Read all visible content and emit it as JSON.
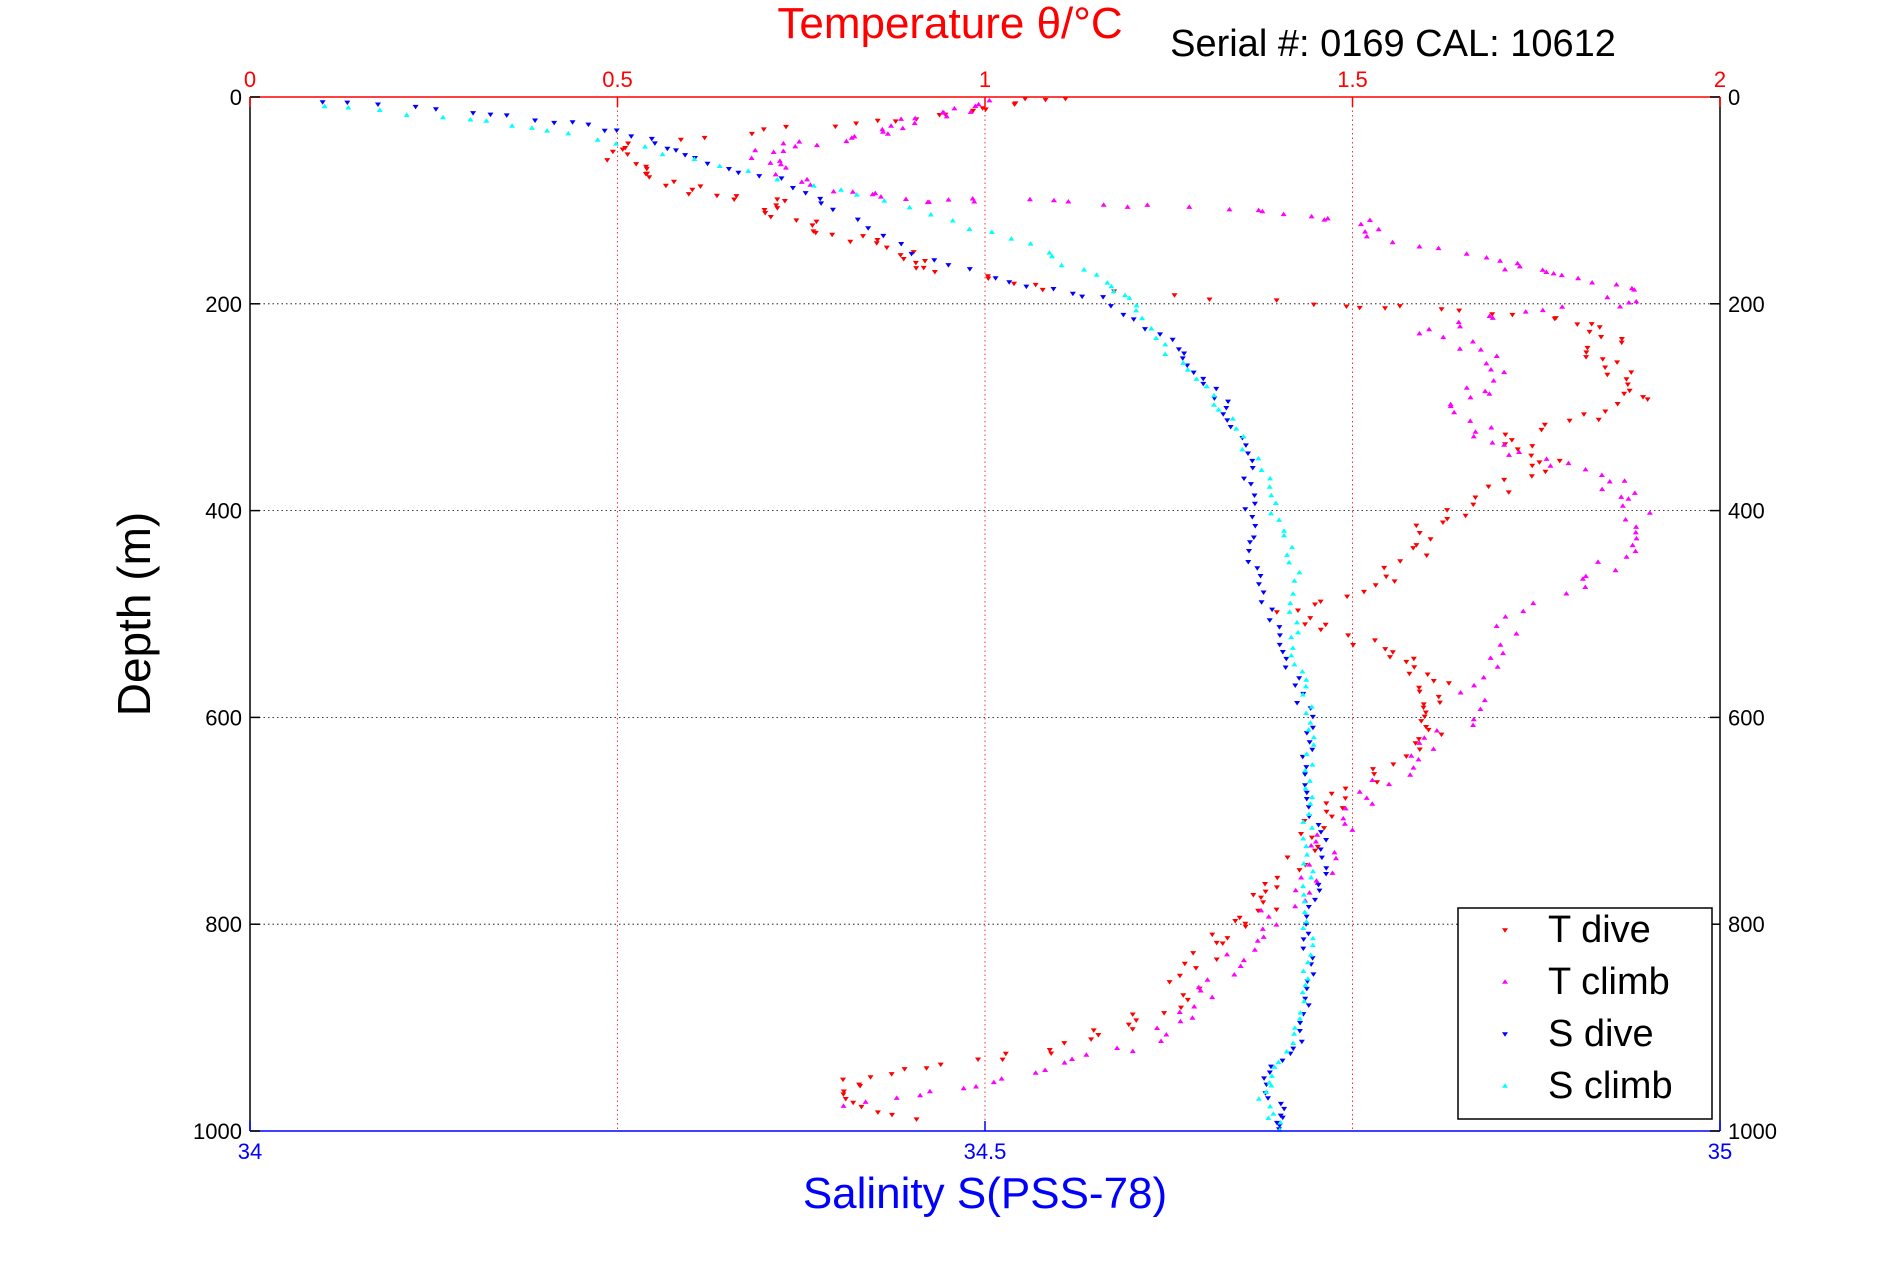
{
  "chart_data": {
    "type": "scatter",
    "title": "Temperature θ/°C",
    "subtitle": "Serial #: 0169 CAL: 10612",
    "ylabel": "Depth (m)",
    "xlabel": "Salinity S(PSS-78)",
    "top_axis": {
      "label": "Temperature θ/°C",
      "range": [
        0,
        2
      ],
      "ticks": [
        "0",
        "0.5",
        "1",
        "1.5",
        "2"
      ],
      "color": "#ff0000"
    },
    "bottom_axis": {
      "label": "Salinity S(PSS-78)",
      "range": [
        34,
        35
      ],
      "ticks": [
        "34",
        "34.5",
        "35"
      ],
      "color": "#0000ff"
    },
    "y_axis": {
      "range": [
        0,
        1000
      ],
      "inverted": true,
      "ticks": [
        "0",
        "200",
        "400",
        "600",
        "800",
        "1000"
      ]
    },
    "grid": true,
    "legend_placement": "bottom-right",
    "series": [
      {
        "name": "T dive",
        "axis": "temperature",
        "color": "#ff0000",
        "marker": "triangle-down",
        "points": [
          [
            1.09,
            0
          ],
          [
            1.02,
            10
          ],
          [
            0.93,
            20
          ],
          [
            0.75,
            30
          ],
          [
            0.52,
            45
          ],
          [
            0.5,
            60
          ],
          [
            0.55,
            75
          ],
          [
            0.6,
            90
          ],
          [
            0.7,
            100
          ],
          [
            0.72,
            110
          ],
          [
            0.78,
            130
          ],
          [
            0.85,
            140
          ],
          [
            0.9,
            155
          ],
          [
            0.95,
            170
          ],
          [
            1.1,
            185
          ],
          [
            1.45,
            200
          ],
          [
            1.6,
            205
          ],
          [
            1.8,
            215
          ],
          [
            1.85,
            230
          ],
          [
            1.83,
            250
          ],
          [
            1.87,
            270
          ],
          [
            1.9,
            290
          ],
          [
            1.82,
            310
          ],
          [
            1.7,
            330
          ],
          [
            1.78,
            350
          ],
          [
            1.72,
            370
          ],
          [
            1.65,
            400
          ],
          [
            1.6,
            420
          ],
          [
            1.58,
            450
          ],
          [
            1.52,
            480
          ],
          [
            1.4,
            500
          ],
          [
            1.5,
            520
          ],
          [
            1.55,
            540
          ],
          [
            1.6,
            560
          ],
          [
            1.62,
            580
          ],
          [
            1.62,
            600
          ],
          [
            1.6,
            620
          ],
          [
            1.55,
            650
          ],
          [
            1.48,
            680
          ],
          [
            1.44,
            700
          ],
          [
            1.43,
            730
          ],
          [
            1.4,
            760
          ],
          [
            1.38,
            780
          ],
          [
            1.35,
            800
          ],
          [
            1.3,
            820
          ],
          [
            1.28,
            850
          ],
          [
            1.25,
            880
          ],
          [
            1.18,
            900
          ],
          [
            1.1,
            920
          ],
          [
            0.95,
            935
          ],
          [
            0.8,
            950
          ],
          [
            0.82,
            970
          ],
          [
            0.9,
            990
          ]
        ]
      },
      {
        "name": "T climb",
        "axis": "temperature",
        "color": "#ff00ff",
        "marker": "triangle-up",
        "points": [
          [
            1.03,
            5
          ],
          [
            0.95,
            15
          ],
          [
            0.9,
            25
          ],
          [
            0.85,
            35
          ],
          [
            0.75,
            45
          ],
          [
            0.7,
            55
          ],
          [
            0.72,
            70
          ],
          [
            0.8,
            90
          ],
          [
            0.9,
            100
          ],
          [
            1.0,
            100
          ],
          [
            1.2,
            105
          ],
          [
            1.4,
            110
          ],
          [
            1.5,
            120
          ],
          [
            1.55,
            140
          ],
          [
            1.7,
            160
          ],
          [
            1.75,
            170
          ],
          [
            1.85,
            180
          ],
          [
            1.88,
            200
          ],
          [
            1.7,
            210
          ],
          [
            1.6,
            230
          ],
          [
            1.7,
            250
          ],
          [
            1.68,
            280
          ],
          [
            1.65,
            300
          ],
          [
            1.68,
            330
          ],
          [
            1.75,
            350
          ],
          [
            1.85,
            370
          ],
          [
            1.88,
            390
          ],
          [
            1.9,
            420
          ],
          [
            1.85,
            450
          ],
          [
            1.78,
            480
          ],
          [
            1.7,
            520
          ],
          [
            1.67,
            560
          ],
          [
            1.65,
            600
          ],
          [
            1.6,
            630
          ],
          [
            1.55,
            660
          ],
          [
            1.5,
            690
          ],
          [
            1.47,
            720
          ],
          [
            1.45,
            750
          ],
          [
            1.42,
            770
          ],
          [
            1.38,
            800
          ],
          [
            1.35,
            830
          ],
          [
            1.3,
            860
          ],
          [
            1.28,
            890
          ],
          [
            1.2,
            920
          ],
          [
            1.1,
            940
          ],
          [
            0.95,
            960
          ],
          [
            0.8,
            975
          ]
        ]
      },
      {
        "name": "S dive",
        "axis": "salinity",
        "color": "#0000ff",
        "marker": "triangle-down",
        "points": [
          [
            34.05,
            5
          ],
          [
            34.15,
            15
          ],
          [
            34.22,
            25
          ],
          [
            34.27,
            40
          ],
          [
            34.3,
            60
          ],
          [
            34.36,
            80
          ],
          [
            34.4,
            110
          ],
          [
            34.45,
            150
          ],
          [
            34.52,
            180
          ],
          [
            34.58,
            195
          ],
          [
            34.62,
            230
          ],
          [
            34.64,
            260
          ],
          [
            34.66,
            290
          ],
          [
            34.67,
            320
          ],
          [
            34.68,
            360
          ],
          [
            34.68,
            400
          ],
          [
            34.68,
            440
          ],
          [
            34.69,
            480
          ],
          [
            34.7,
            520
          ],
          [
            34.71,
            560
          ],
          [
            34.72,
            600
          ],
          [
            34.72,
            640
          ],
          [
            34.72,
            680
          ],
          [
            34.73,
            720
          ],
          [
            34.73,
            760
          ],
          [
            34.72,
            800
          ],
          [
            34.72,
            840
          ],
          [
            34.72,
            880
          ],
          [
            34.71,
            920
          ],
          [
            34.69,
            950
          ],
          [
            34.7,
            980
          ],
          [
            34.7,
            1000
          ]
        ]
      },
      {
        "name": "S climb",
        "axis": "salinity",
        "color": "#00ffff",
        "marker": "triangle-up",
        "points": [
          [
            34.05,
            10
          ],
          [
            34.15,
            20
          ],
          [
            34.22,
            35
          ],
          [
            34.3,
            60
          ],
          [
            34.4,
            90
          ],
          [
            34.48,
            120
          ],
          [
            34.54,
            150
          ],
          [
            34.58,
            180
          ],
          [
            34.6,
            200
          ],
          [
            34.62,
            240
          ],
          [
            34.65,
            280
          ],
          [
            34.67,
            320
          ],
          [
            34.69,
            370
          ],
          [
            34.7,
            410
          ],
          [
            34.71,
            450
          ],
          [
            34.71,
            500
          ],
          [
            34.71,
            540
          ],
          [
            34.72,
            580
          ],
          [
            34.72,
            620
          ],
          [
            34.72,
            660
          ],
          [
            34.72,
            700
          ],
          [
            34.72,
            740
          ],
          [
            34.72,
            780
          ],
          [
            34.72,
            820
          ],
          [
            34.72,
            860
          ],
          [
            34.71,
            900
          ],
          [
            34.7,
            940
          ],
          [
            34.69,
            970
          ],
          [
            34.7,
            1000
          ]
        ]
      }
    ]
  }
}
